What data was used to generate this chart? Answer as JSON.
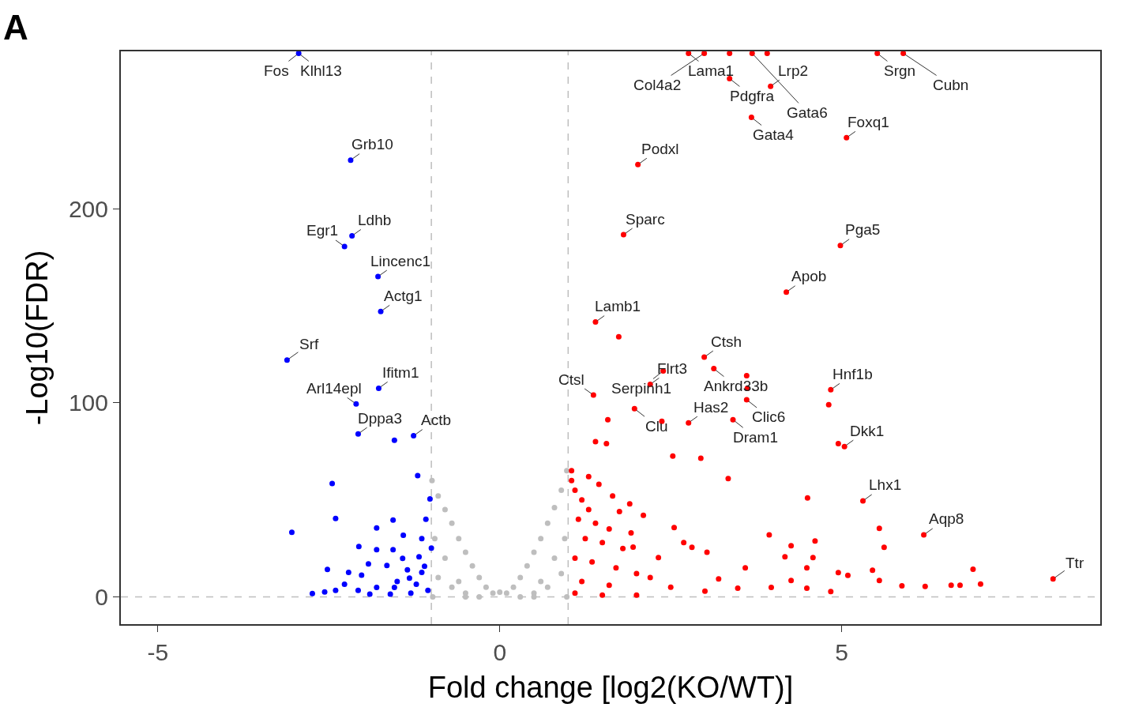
{
  "chart_data": {
    "type": "scatter",
    "xlabel": "Fold change [log2(KO/WT)]",
    "ylabel": "-Log10(FDR)",
    "xlim": [
      -5.54,
      8.78
    ],
    "ylim": [
      -14,
      281
    ],
    "xticks": [
      -5,
      0,
      5
    ],
    "yticks": [
      0,
      100,
      200
    ],
    "grid": false,
    "marker": "circle",
    "series": [
      {
        "color": "#0000ff",
        "x": [
          -2.94,
          -2.18,
          -2.16,
          -2.27,
          -1.78,
          -1.74,
          -3.11,
          -1.77,
          -2.1,
          -2.07,
          -1.54,
          -1.26,
          -1.2,
          -2.45,
          -2.4,
          -3.04,
          -1.8,
          -1.56,
          -1.02,
          -1.41,
          -1.14,
          -2.06,
          -1.8,
          -1.56,
          -1.42,
          -1.92,
          -1.65,
          -2.52,
          -2.21,
          -2.02,
          -2.27,
          -2.74,
          -2.56,
          -2.4,
          -2.07,
          -1.8,
          -1.54,
          -1.32,
          -1.14,
          -1.05,
          -1.18,
          -1.0,
          -1.1,
          -1.22,
          -1.3,
          -1.6,
          -1.9,
          -1.35,
          -1.08,
          -1.5
        ],
        "values": [
          280,
          225,
          186,
          180.5,
          165,
          147,
          122,
          107.5,
          99.4,
          84,
          80.7,
          83,
          62.5,
          58.4,
          40.4,
          33.3,
          35.5,
          39.6,
          50.5,
          31.8,
          30,
          26,
          24.3,
          24.3,
          19.9,
          17,
          16.2,
          14.2,
          12.7,
          11.2,
          6.5,
          1.8,
          2.6,
          3.4,
          3.4,
          4.9,
          4.9,
          9.7,
          12.7,
          3.4,
          20.7,
          25.2,
          15.8,
          6.5,
          2,
          1.5,
          1.5,
          14,
          40,
          8
        ]
      },
      {
        "color": "#bebebe",
        "x": [
          -0.99,
          -0.9,
          -0.8,
          -0.7,
          -0.6,
          -0.5,
          -0.4,
          -0.3,
          -0.2,
          -0.1,
          0,
          0.1,
          0.2,
          0.3,
          0.4,
          0.5,
          0.6,
          0.7,
          0.8,
          0.9,
          0.98,
          -0.9,
          -0.7,
          -0.5,
          0.5,
          0.7,
          0.9,
          -0.95,
          0.95,
          -0.8,
          0.8,
          -0.6,
          0.6,
          -0.98,
          0.98,
          -0.5,
          0.5,
          -0.3,
          0.3
        ],
        "values": [
          60,
          52,
          45,
          38,
          30,
          23,
          16,
          10,
          5,
          2,
          2.5,
          2,
          5,
          10,
          16,
          23,
          30,
          38,
          46,
          55,
          65,
          10,
          5,
          2,
          2,
          5,
          12,
          30,
          30,
          20,
          20,
          8,
          8,
          0,
          0,
          0,
          0,
          0,
          0
        ]
      },
      {
        "color": "#ff0000",
        "x": [
          2.76,
          2.99,
          3.36,
          3.69,
          3.91,
          5.52,
          5.9,
          3.36,
          3.96,
          3.68,
          5.07,
          2.02,
          1.81,
          4.98,
          4.19,
          1.4,
          1.74,
          2.99,
          3.13,
          2.39,
          2.2,
          3.61,
          3.62,
          3.61,
          4.84,
          4.81,
          1.37,
          1.97,
          2.37,
          2.76,
          3.41,
          1.58,
          4.95,
          5.04,
          1.4,
          1.56,
          2.53,
          2.94,
          3.34,
          4.5,
          5.31,
          5.55,
          6.2,
          5.62,
          3.94,
          4.61,
          4.26,
          4.17,
          4.58,
          5.45,
          6.92,
          8.09,
          7.03,
          6.6,
          6.73,
          6.22,
          5.88,
          5.55,
          5.09,
          4.95,
          4.49,
          3.59,
          4.26,
          4.49,
          4.84,
          3.97,
          3.48,
          3.2,
          3.03,
          2.69,
          2.81,
          2.32,
          2.55,
          1.95,
          1.92,
          1.05,
          1.1,
          1.2,
          1.3,
          1.15,
          1.4,
          1.6,
          1.25,
          1.5,
          1.8,
          1.1,
          1.35,
          1.7,
          2.0,
          2.2,
          1.2,
          1.6,
          2.5,
          3.0,
          1.1,
          1.5,
          2.0,
          1.05,
          1.3,
          1.45,
          1.65,
          1.9,
          2.1,
          1.75
        ],
        "values": [
          280,
          280,
          280,
          280,
          280,
          280,
          280,
          267,
          263,
          247,
          236.5,
          222.7,
          186.6,
          181,
          157,
          141.6,
          134,
          123.5,
          117.6,
          116.4,
          109.5,
          114,
          107.5,
          101.6,
          106.7,
          99,
          104,
          97,
          90.5,
          89.7,
          91.3,
          91.3,
          79,
          77.5,
          80,
          79,
          72.6,
          71.4,
          61,
          51,
          49.5,
          35.3,
          32,
          25.6,
          32,
          28.8,
          26.4,
          20.7,
          20.3,
          13.8,
          14.3,
          9.3,
          6.7,
          6,
          6,
          5.4,
          5.7,
          8.5,
          11.1,
          12.6,
          15,
          15,
          8.5,
          4.5,
          2.8,
          4.9,
          4.5,
          9.3,
          23,
          28,
          25.6,
          20.3,
          35.7,
          25.7,
          33,
          60,
          55,
          50,
          45,
          40,
          38,
          35,
          30,
          28,
          25,
          20,
          18,
          15,
          12,
          10,
          8,
          6,
          5,
          3,
          2,
          1,
          1,
          65,
          62,
          58,
          52,
          48,
          42,
          44
        ]
      }
    ],
    "ref_lines": [
      {
        "axis": "x",
        "value": -1,
        "color": "#bebebe",
        "line_style": "dashed"
      },
      {
        "axis": "x",
        "value": 1,
        "color": "#bebebe",
        "line_style": "dashed"
      },
      {
        "axis": "y",
        "value": 0,
        "color": "#bebebe",
        "line_style": "dashed"
      }
    ],
    "annotations": [
      "A",
      {
        "text": "Klhl13",
        "x": -2.94,
        "y": 280
      },
      {
        "text": "Fos",
        "x": -2.94,
        "y": 280
      },
      {
        "text": "Grb10",
        "x": -2.18,
        "y": 225
      },
      {
        "text": "Ldhb",
        "x": -2.16,
        "y": 186
      },
      {
        "text": "Egr1",
        "x": -2.27,
        "y": 180.5
      },
      {
        "text": "Lincenc1",
        "x": -1.78,
        "y": 165
      },
      {
        "text": "Actg1",
        "x": -1.74,
        "y": 147
      },
      {
        "text": "Srf",
        "x": -3.11,
        "y": 122
      },
      {
        "text": "Actb",
        "x": -1.26,
        "y": 83
      },
      {
        "text": "Ifitm1",
        "x": -1.77,
        "y": 107.5
      },
      {
        "text": "Dppa3",
        "x": -2.07,
        "y": 84
      },
      {
        "text": "Arl14epl",
        "x": -2.1,
        "y": 99.4
      },
      {
        "text": "Lama1",
        "x": 2.76,
        "y": 280
      },
      {
        "text": "Col4a2",
        "x": 2.99,
        "y": 280
      },
      {
        "text": "Lrp2",
        "x": 3.96,
        "y": 263
      },
      {
        "text": "Srgn",
        "x": 5.52,
        "y": 280
      },
      {
        "text": "Cubn",
        "x": 5.9,
        "y": 280
      },
      {
        "text": "Pdgfra",
        "x": 3.36,
        "y": 267
      },
      {
        "text": "Gata4",
        "x": 3.68,
        "y": 247
      },
      {
        "text": "Podxl",
        "x": 2.02,
        "y": 222.7
      },
      {
        "text": "Gata6",
        "x": 3.69,
        "y": 280
      },
      {
        "text": "Foxq1",
        "x": 5.07,
        "y": 236.5
      },
      {
        "text": "Sparc",
        "x": 1.81,
        "y": 186.6
      },
      {
        "text": "Pga5",
        "x": 4.98,
        "y": 181
      },
      {
        "text": "Lamb1",
        "x": 1.4,
        "y": 141.6
      },
      {
        "text": "Ctsh",
        "x": 2.99,
        "y": 123.5
      },
      {
        "text": "Apob",
        "x": 4.19,
        "y": 157
      },
      {
        "text": "Flrt3",
        "x": 2.2,
        "y": 109.5
      },
      {
        "text": "Ankrd33b",
        "x": 3.13,
        "y": 117.6
      },
      {
        "text": "Serpinh1",
        "x": 2.39,
        "y": 116.4
      },
      {
        "text": "Clic6",
        "x": 3.61,
        "y": 101.6
      },
      {
        "text": "Ctsl",
        "x": 1.37,
        "y": 104
      },
      {
        "text": "Clu",
        "x": 1.97,
        "y": 97
      },
      {
        "text": "Has2",
        "x": 2.76,
        "y": 89.7
      },
      {
        "text": "Hnf1b",
        "x": 4.84,
        "y": 106.7
      },
      {
        "text": "Dram1",
        "x": 3.41,
        "y": 91.3
      },
      {
        "text": "Dkk1",
        "x": 5.04,
        "y": 77.5
      },
      {
        "text": "Lhx1",
        "x": 5.31,
        "y": 49.5
      },
      {
        "text": "Aqp8",
        "x": 6.2,
        "y": 32
      },
      {
        "text": "Ttr",
        "x": 8.09,
        "y": 9.3
      }
    ]
  }
}
